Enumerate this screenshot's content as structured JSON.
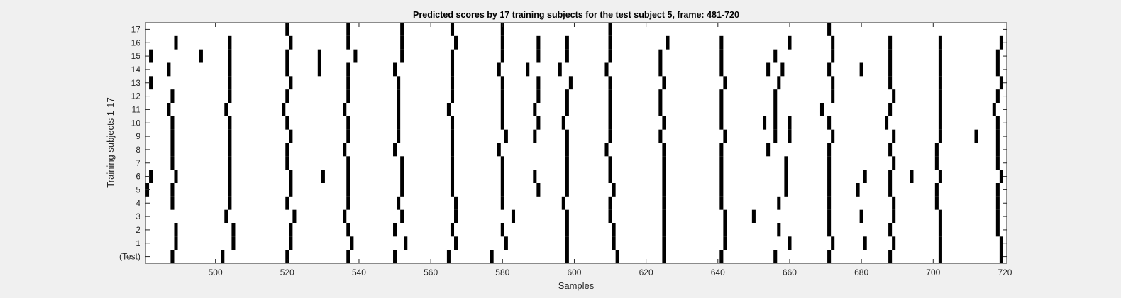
{
  "chart_data": {
    "type": "heatmap",
    "title": "Predicted scores by 17 training subjects for the test subject 5, frame: 481-720",
    "xlabel": "Samples",
    "ylabel": "Training subjects 1-17",
    "xlim": [
      481,
      720
    ],
    "x_ticks": [
      500,
      520,
      540,
      560,
      580,
      600,
      620,
      640,
      660,
      680,
      700,
      720
    ],
    "y_tick_labels": [
      "(Test)",
      "1",
      "2",
      "3",
      "4",
      "5",
      "6",
      "7",
      "8",
      "9",
      "10",
      "11",
      "12",
      "13",
      "14",
      "15",
      "16",
      "17"
    ],
    "grid": false,
    "cmap": [
      "#ffffff",
      "#000000"
    ],
    "rows": [
      {
        "label": "(Test)",
        "marks": [
          488,
          502,
          520,
          537,
          550,
          565,
          577,
          598,
          612,
          625,
          641,
          656,
          671,
          688,
          702,
          719
        ]
      },
      {
        "label": "1",
        "marks": [
          489,
          505,
          521,
          538,
          553,
          567,
          581,
          598,
          611,
          625,
          642,
          660,
          672,
          681,
          689,
          702,
          719
        ]
      },
      {
        "label": "2",
        "marks": [
          489,
          505,
          521,
          537,
          550,
          566,
          580,
          598,
          611,
          625,
          642,
          657,
          671,
          688,
          702,
          718
        ]
      },
      {
        "label": "3",
        "marks": [
          503,
          522,
          536,
          552,
          567,
          583,
          598,
          610,
          625,
          642,
          650,
          671,
          680,
          689,
          702,
          718
        ]
      },
      {
        "label": "4",
        "marks": [
          488,
          504,
          520,
          537,
          551,
          567,
          580,
          597,
          610,
          625,
          641,
          657,
          671,
          689,
          701,
          718
        ]
      },
      {
        "label": "5",
        "marks": [
          481,
          488,
          504,
          521,
          537,
          552,
          566,
          580,
          590,
          598,
          611,
          625,
          641,
          659,
          671,
          679,
          688,
          701,
          718
        ]
      },
      {
        "label": "6",
        "marks": [
          482,
          489,
          504,
          521,
          530,
          537,
          552,
          566,
          580,
          589,
          598,
          610,
          625,
          641,
          659,
          671,
          681,
          688,
          694,
          702,
          719
        ]
      },
      {
        "label": "7",
        "marks": [
          488,
          504,
          520,
          537,
          552,
          566,
          580,
          598,
          610,
          625,
          641,
          659,
          671,
          689,
          701,
          718
        ]
      },
      {
        "label": "8",
        "marks": [
          488,
          504,
          520,
          536,
          550,
          566,
          579,
          598,
          609,
          625,
          641,
          654,
          671,
          688,
          701,
          718
        ]
      },
      {
        "label": "9",
        "marks": [
          488,
          504,
          521,
          537,
          551,
          566,
          581,
          589,
          598,
          610,
          624,
          642,
          656,
          660,
          672,
          689,
          702,
          712,
          718
        ]
      },
      {
        "label": "10",
        "marks": [
          488,
          504,
          520,
          537,
          551,
          566,
          580,
          590,
          597,
          610,
          625,
          641,
          653,
          656,
          660,
          671,
          687,
          702,
          718
        ]
      },
      {
        "label": "11",
        "marks": [
          487,
          503,
          519,
          536,
          551,
          565,
          580,
          589,
          598,
          610,
          624,
          641,
          656,
          669,
          688,
          702,
          717
        ]
      },
      {
        "label": "12",
        "marks": [
          488,
          504,
          520,
          537,
          551,
          566,
          580,
          590,
          598,
          610,
          624,
          641,
          656,
          672,
          689,
          702,
          718
        ]
      },
      {
        "label": "13",
        "marks": [
          482,
          504,
          521,
          537,
          551,
          566,
          580,
          590,
          599,
          610,
          625,
          642,
          657,
          672,
          688,
          702,
          719
        ]
      },
      {
        "label": "14",
        "marks": [
          487,
          504,
          520,
          529,
          537,
          550,
          566,
          579,
          587,
          596,
          609,
          624,
          641,
          654,
          658,
          671,
          680,
          688,
          702,
          718
        ]
      },
      {
        "label": "15",
        "marks": [
          482,
          496,
          504,
          520,
          529,
          539,
          552,
          566,
          580,
          590,
          598,
          610,
          624,
          641,
          656,
          672,
          688,
          702,
          718
        ]
      },
      {
        "label": "16",
        "marks": [
          489,
          504,
          521,
          537,
          552,
          567,
          580,
          590,
          598,
          610,
          626,
          641,
          660,
          672,
          688,
          702,
          719
        ]
      },
      {
        "label": "17",
        "marks": [
          520,
          537,
          552,
          566,
          580,
          610,
          671
        ]
      }
    ]
  }
}
